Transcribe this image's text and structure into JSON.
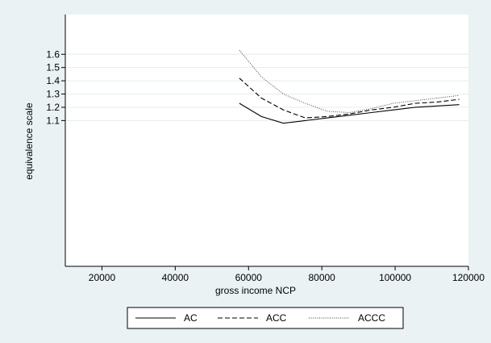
{
  "chart_data": {
    "type": "line",
    "xlabel": "gross income NCP",
    "ylabel": "equivalence scale",
    "xlim": [
      10000,
      120000
    ],
    "ylim": [
      0,
      1.9
    ],
    "xticks": [
      20000,
      40000,
      60000,
      80000,
      100000,
      120000
    ],
    "yticks": [
      1.1,
      1.2,
      1.3,
      1.4,
      1.5,
      1.6
    ],
    "grid": "horizontal",
    "legend_position": "bottom",
    "series": [
      {
        "name": "AC",
        "style": "solid",
        "x": [
          57500,
          63500,
          69500,
          75500,
          81500,
          87500,
          93500,
          99500,
          105500,
          111500,
          117500
        ],
        "y": [
          1.23,
          1.13,
          1.08,
          1.1,
          1.12,
          1.14,
          1.16,
          1.18,
          1.2,
          1.21,
          1.22
        ]
      },
      {
        "name": "ACC",
        "style": "dashed",
        "x": [
          57500,
          63500,
          69500,
          75500,
          81500,
          87500,
          93500,
          99500,
          105500,
          111500,
          117500
        ],
        "y": [
          1.42,
          1.27,
          1.18,
          1.12,
          1.13,
          1.15,
          1.18,
          1.2,
          1.23,
          1.24,
          1.26
        ]
      },
      {
        "name": "ACCC",
        "style": "dotted",
        "x": [
          57500,
          63500,
          69500,
          75500,
          81500,
          87500,
          93500,
          99500,
          105500,
          111500,
          117500
        ],
        "y": [
          1.63,
          1.43,
          1.3,
          1.23,
          1.17,
          1.16,
          1.19,
          1.23,
          1.25,
          1.27,
          1.29
        ]
      }
    ]
  }
}
